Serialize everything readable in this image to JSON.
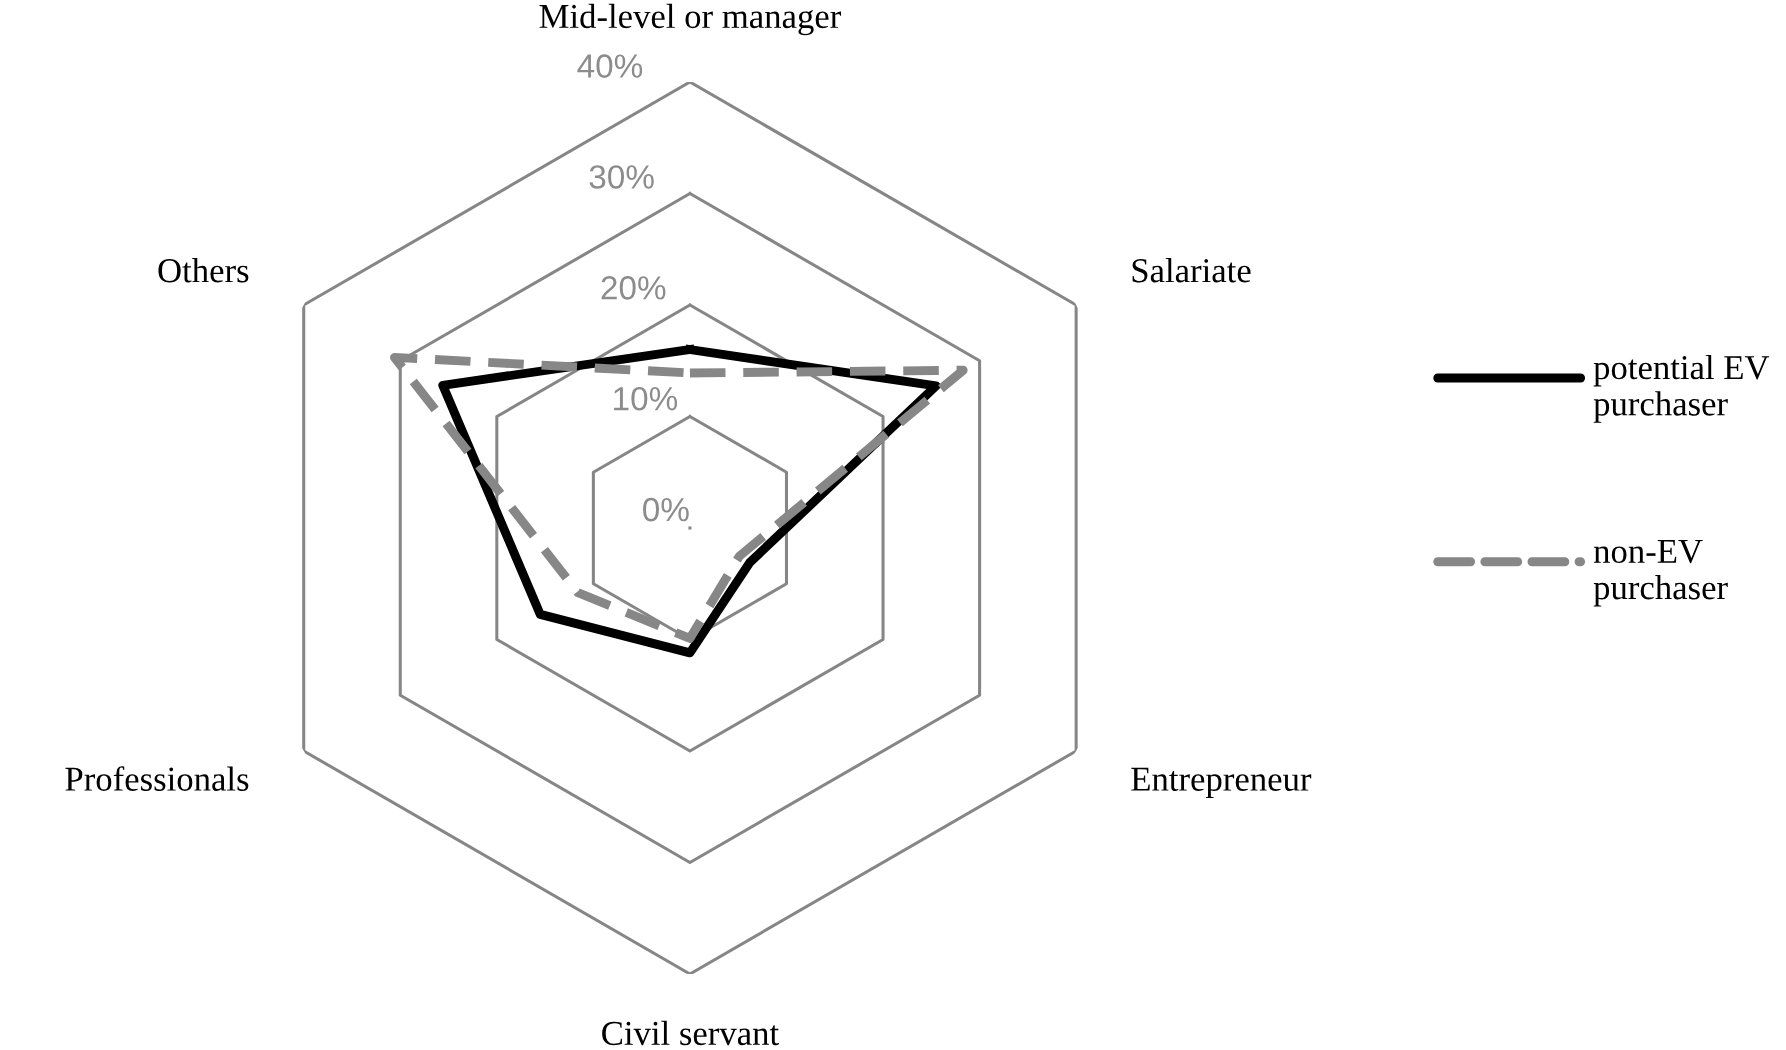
{
  "chart_data": {
    "type": "radar",
    "categories": [
      "Mid-level or manager",
      "Salariate",
      "Entrepreneur",
      "Civil servant",
      "Professionals",
      "Others"
    ],
    "series": [
      {
        "name": "potential EV purchaser",
        "color": "#000000",
        "line_style": "solid",
        "values": [
          16.0,
          25.5,
          6.2,
          11.2,
          15.5,
          25.6
        ]
      },
      {
        "name": "non-EV purchaser",
        "color": "#878787",
        "line_style": "dashed",
        "values": [
          13.9,
          28.3,
          5.1,
          9.9,
          11.6,
          30.6
        ]
      }
    ],
    "ylim": [
      0,
      40
    ],
    "yticks": [
      {
        "value": 0,
        "label": "0%"
      },
      {
        "value": 10,
        "label": "10%"
      },
      {
        "value": 20,
        "label": "20%"
      },
      {
        "value": 30,
        "label": "30%"
      },
      {
        "value": 40,
        "label": "40%"
      }
    ],
    "grid": true,
    "legend": "right",
    "marker": "none"
  }
}
